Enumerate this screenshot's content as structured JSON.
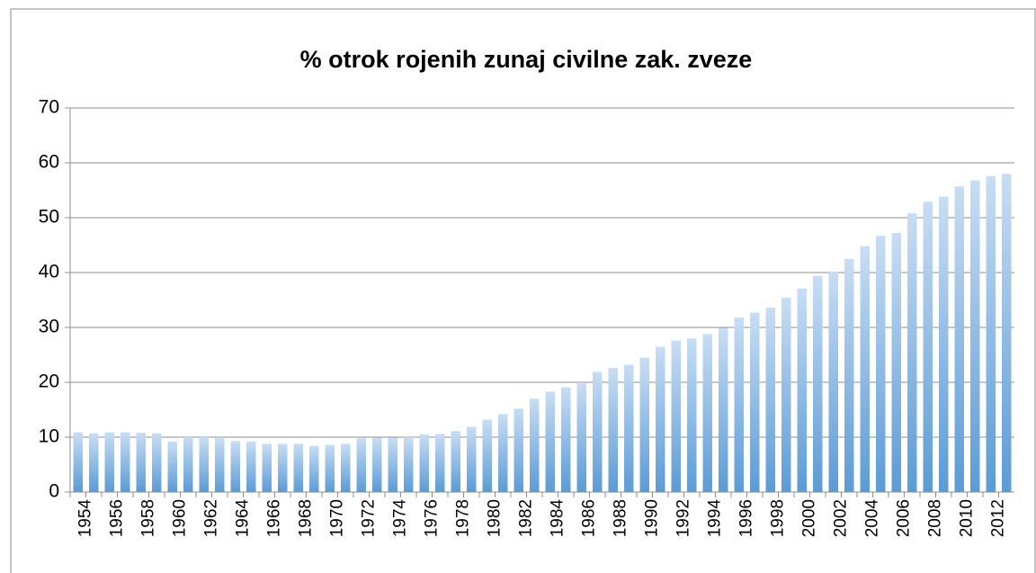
{
  "chart_data": {
    "type": "bar",
    "title": "% otrok rojenih zunaj civilne zak. zveze",
    "categories": [
      "1954",
      null,
      "1956",
      null,
      "1958",
      null,
      "1960",
      null,
      "1962",
      null,
      "1964",
      null,
      "1966",
      null,
      "1968",
      null,
      "1970",
      null,
      "1972",
      null,
      "1974",
      null,
      "1976",
      null,
      "1978",
      null,
      "1980",
      null,
      "1982",
      null,
      "1984",
      null,
      "1986",
      null,
      "1988",
      null,
      "1990",
      null,
      "1992",
      null,
      "1994",
      null,
      "1996",
      null,
      "1998",
      null,
      "2000",
      null,
      "2002",
      null,
      "2004",
      null,
      "2006",
      null,
      "2008",
      null,
      "2010",
      null,
      "2012",
      null
    ],
    "values": [
      10.9,
      10.7,
      10.9,
      10.9,
      10.8,
      10.7,
      9.2,
      10.0,
      10.0,
      9.8,
      9.3,
      9.2,
      8.8,
      8.8,
      8.8,
      8.4,
      8.6,
      8.8,
      9.8,
      9.9,
      9.9,
      10.0,
      10.5,
      10.6,
      11.1,
      11.9,
      13.2,
      14.2,
      15.2,
      17.0,
      18.3,
      19.1,
      19.8,
      21.9,
      22.6,
      23.2,
      24.5,
      26.5,
      27.6,
      28.0,
      28.8,
      29.9,
      31.8,
      32.7,
      33.6,
      35.4,
      37.1,
      39.4,
      40.2,
      42.5,
      44.8,
      46.7,
      47.2,
      50.8,
      52.9,
      53.8,
      55.7,
      56.8,
      57.6,
      58.0
    ],
    "color": "#5b9bd5",
    "ylim": [
      0,
      70
    ],
    "yticks": [
      0,
      10,
      20,
      30,
      40,
      50,
      60,
      70
    ],
    "grid": true
  }
}
